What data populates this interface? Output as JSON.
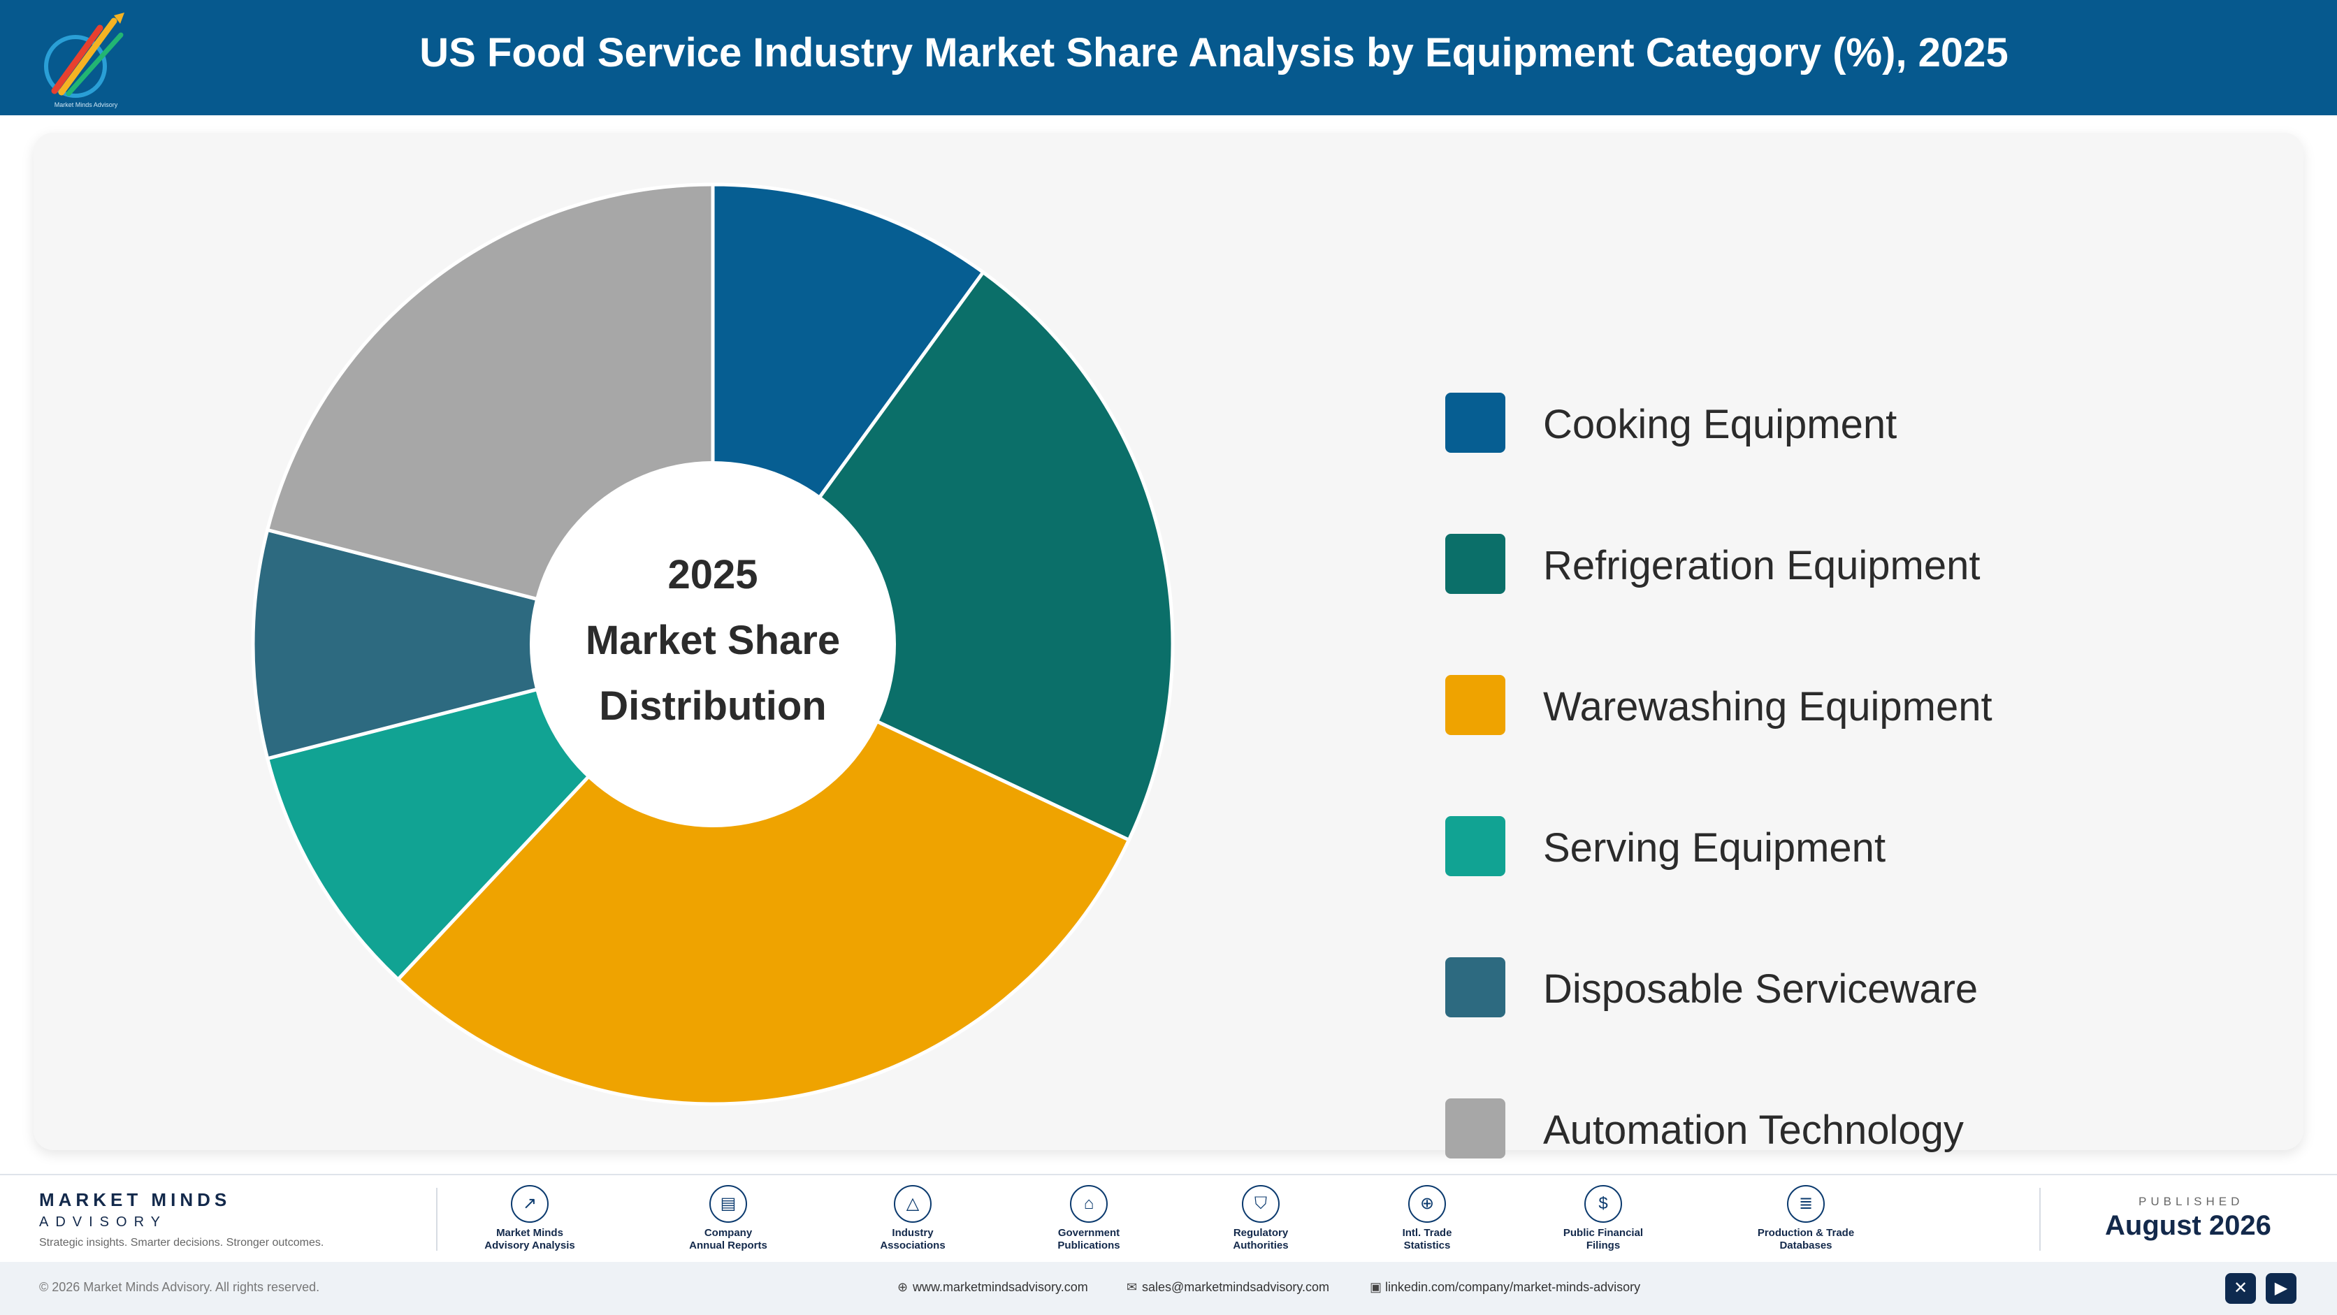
{
  "header": {
    "title": "US Food Service Industry Market Share Analysis by Equipment Category (%), 2025",
    "logo_caption": "Market Minds Advisory"
  },
  "chart_data": {
    "type": "pie",
    "variant": "donut",
    "title": "US Food Service Industry Market Share Analysis by Equipment Category (%), 2025",
    "center_label": [
      "2025",
      "Market Share",
      "Distribution"
    ],
    "categories": [
      "Cooking Equipment",
      "Refrigeration Equipment",
      "Warewashing Equipment",
      "Serving Equipment",
      "Disposable Serviceware",
      "Automation Technology"
    ],
    "values": [
      10,
      22,
      30,
      9,
      8,
      21
    ],
    "colors": [
      "#065e92",
      "#0b6f69",
      "#efa300",
      "#11a393",
      "#2d6a80",
      "#a7a7a7"
    ],
    "legend_position": "right"
  },
  "footer": {
    "brand_name": "MARKET MINDS",
    "brand_sub": "ADVISORY",
    "tagline": "Strategic insights. Smarter decisions. Stronger outcomes.",
    "sources": [
      {
        "label": "Market Minds\nAdvisory Analysis",
        "icon": "trend-icon"
      },
      {
        "label": "Company\nAnnual Reports",
        "icon": "document-icon"
      },
      {
        "label": "Industry\nAssociations",
        "icon": "network-icon"
      },
      {
        "label": "Government\nPublications",
        "icon": "building-icon"
      },
      {
        "label": "Regulatory\nAuthorities",
        "icon": "shield-icon"
      },
      {
        "label": "Intl. Trade\nStatistics",
        "icon": "globe-icon"
      },
      {
        "label": "Public Financial\nFilings",
        "icon": "dollar-icon"
      },
      {
        "label": "Production & Trade\nDatabases",
        "icon": "database-icon"
      }
    ],
    "published_label": "PUBLISHED",
    "published_date": "August 2026",
    "copyright": "© 2026 Market Minds Advisory. All rights reserved.",
    "website": "www.marketmindsadvisory.com",
    "email": "sales@marketmindsadvisory.com",
    "linkedin": "linkedin.com/company/market-minds-advisory",
    "social": [
      "x-icon",
      "youtube-icon"
    ]
  }
}
